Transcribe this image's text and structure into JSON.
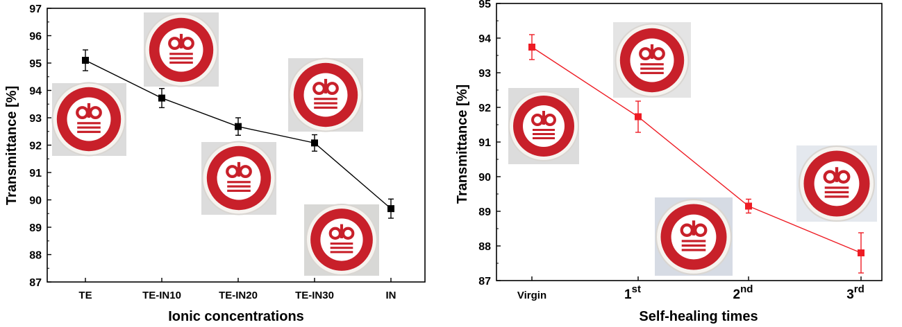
{
  "chart_data": [
    {
      "type": "line",
      "categories": [
        "TE",
        "TE-IN10",
        "TE-IN20",
        "TE-IN30",
        "IN"
      ],
      "values": [
        95.1,
        93.72,
        92.68,
        92.08,
        89.68
      ],
      "errors": [
        0.38,
        0.35,
        0.32,
        0.3,
        0.35
      ],
      "xlabel": "Ionic concentrations",
      "ylabel": "Transmittance  [%]",
      "ylim": [
        87,
        97
      ],
      "yticks": [
        "87",
        "88",
        "89",
        "90",
        "91",
        "92",
        "93",
        "94",
        "95",
        "96",
        "97"
      ],
      "color": "#000000",
      "marker": "square",
      "grid": false
    },
    {
      "type": "line",
      "categories": [
        "Virgin",
        "1st",
        "2nd",
        "3rd"
      ],
      "category_labels": [
        {
          "base": "Virgin",
          "sup": ""
        },
        {
          "base": "1",
          "sup": "st"
        },
        {
          "base": "2",
          "sup": "nd"
        },
        {
          "base": "3",
          "sup": "rd"
        }
      ],
      "values": [
        93.74,
        91.73,
        89.15,
        87.8
      ],
      "errors": [
        0.36,
        0.45,
        0.2,
        0.58
      ],
      "xlabel": "Self-healing times",
      "ylabel": "Transmittance  [%]",
      "ylim": [
        87,
        95
      ],
      "yticks": [
        "87",
        "88",
        "89",
        "90",
        "91",
        "92",
        "93",
        "94",
        "95"
      ],
      "color": "#ee1c24",
      "marker": "square",
      "grid": false
    }
  ],
  "sample_photo": {
    "description_icon": "university-seal-disk",
    "seal_color": "#c8202a"
  }
}
